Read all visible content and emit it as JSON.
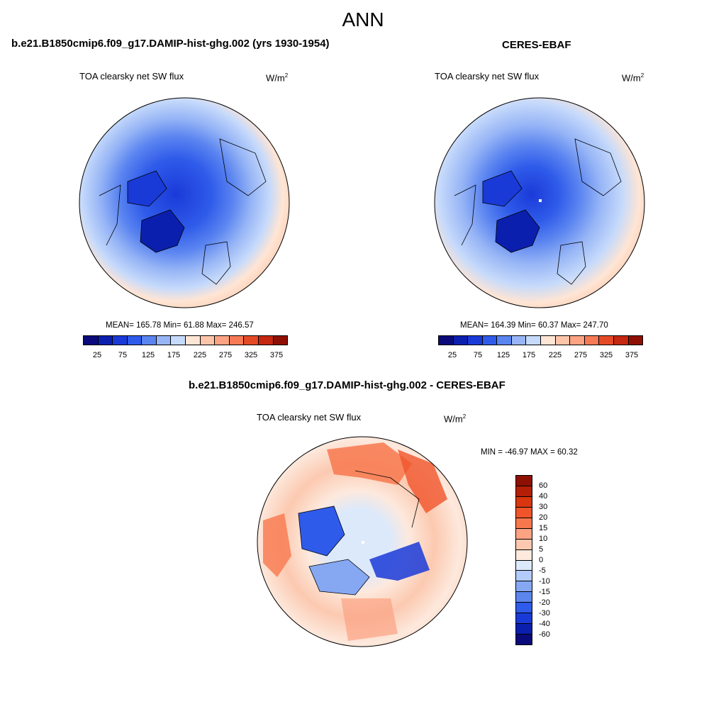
{
  "title": "ANN",
  "panels": [
    {
      "header": "b.e21.B1850cmip6.f09_g17.DAMIP-hist-ghg.002 (yrs 1930-1954)",
      "variable": "TOA clearsky net SW flux",
      "units_base": "W/m",
      "units_sup": "2",
      "stats": "MEAN= 165.78  Min=  61.88  Max= 246.57",
      "colorbar_ticks": [
        "25",
        "75",
        "125",
        "175",
        "225",
        "275",
        "325",
        "375"
      ]
    },
    {
      "header": "CERES-EBAF",
      "variable": "TOA clearsky net SW flux",
      "units_base": "W/m",
      "units_sup": "2",
      "stats": "MEAN= 164.39  Min=  60.37  Max= 247.70",
      "colorbar_ticks": [
        "25",
        "75",
        "125",
        "175",
        "225",
        "275",
        "325",
        "375"
      ]
    },
    {
      "header": "b.e21.B1850cmip6.f09_g17.DAMIP-hist-ghg.002 - CERES-EBAF",
      "variable": "TOA clearsky net SW flux",
      "units_base": "W/m",
      "units_sup": "2",
      "stats": "MIN = -46.97 MAX =  60.32",
      "colorbar_ticks": [
        "60",
        "40",
        "30",
        "20",
        "15",
        "10",
        "5",
        "0",
        "-5",
        "-10",
        "-15",
        "-20",
        "-30",
        "-40",
        "-60"
      ]
    }
  ],
  "colors": {
    "abs_scale": [
      "#0a0a7a",
      "#0b1fae",
      "#1a3ad8",
      "#2f5bea",
      "#5a84f0",
      "#98b6f6",
      "#c6dafb",
      "#ffe5d4",
      "#fcc5aa",
      "#fba383",
      "#f57a55",
      "#e54a26",
      "#c52710",
      "#8e1004"
    ],
    "diff_scale": [
      "#8e1004",
      "#b41f07",
      "#d8360f",
      "#f0542a",
      "#f7784d",
      "#fba383",
      "#fcc9b0",
      "#fde9dd",
      "#dce9fb",
      "#b2cbf8",
      "#86a8f2",
      "#5c86ee",
      "#2f5bea",
      "#1a3ad8",
      "#0b1fae",
      "#0a0a7a"
    ]
  }
}
